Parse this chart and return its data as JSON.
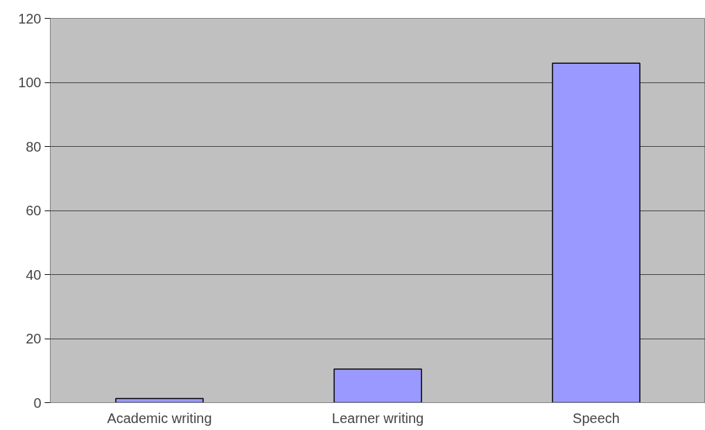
{
  "chart_data": {
    "type": "bar",
    "categories": [
      "Academic writing",
      "Learner writing",
      "Speech"
    ],
    "values": [
      1.3,
      10.5,
      106
    ],
    "color": "#9999ff",
    "ylim": [
      0,
      120
    ],
    "yticks": [
      0,
      20,
      40,
      60,
      80,
      100,
      120
    ],
    "grid": "y"
  }
}
